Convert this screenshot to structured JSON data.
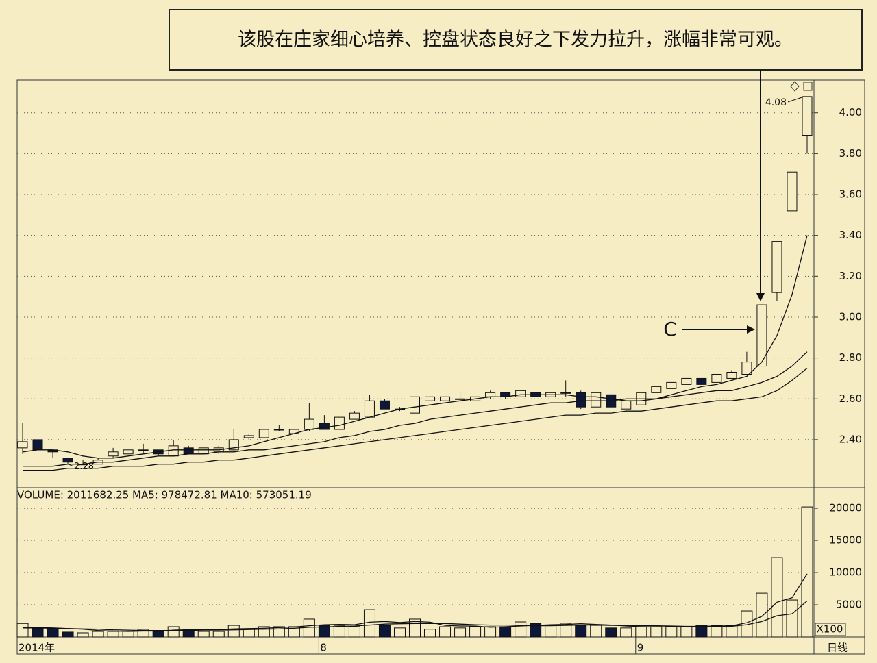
{
  "chart_data": [
    {
      "type": "candlestick",
      "title": "该股在庄家细心培养、控盘状态良好之下发力拉升，涨幅非常可观。",
      "categories": [
        "2014年",
        null,
        null,
        null,
        null,
        null,
        null,
        null,
        null,
        null,
        null,
        null,
        null,
        null,
        null,
        null,
        null,
        null,
        null,
        null,
        "8",
        null,
        null,
        null,
        null,
        null,
        null,
        null,
        null,
        null,
        null,
        null,
        null,
        null,
        null,
        null,
        null,
        null,
        null,
        null,
        null,
        "9",
        null,
        null,
        null,
        null,
        null,
        null,
        null,
        null,
        null,
        null,
        null
      ],
      "open": [
        2.36,
        2.4,
        2.35,
        2.31,
        2.28,
        2.28,
        2.32,
        2.33,
        2.35,
        2.35,
        2.32,
        2.36,
        2.33,
        2.34,
        2.35,
        2.41,
        2.41,
        2.45,
        2.43,
        2.45,
        2.48,
        2.45,
        2.5,
        2.51,
        2.59,
        2.55,
        2.53,
        2.59,
        2.59,
        2.6,
        2.59,
        2.61,
        2.63,
        2.61,
        2.63,
        2.61,
        2.63,
        2.63,
        2.56,
        2.62,
        2.55,
        2.57,
        2.63,
        2.65,
        2.67,
        2.7,
        2.68,
        2.7,
        2.72,
        2.76,
        3.12,
        3.52,
        3.89
      ],
      "high": [
        2.48,
        2.4,
        2.35,
        2.31,
        2.3,
        2.31,
        2.36,
        2.35,
        2.38,
        2.35,
        2.4,
        2.37,
        2.36,
        2.37,
        2.45,
        2.43,
        2.45,
        2.47,
        2.45,
        2.58,
        2.52,
        2.51,
        2.54,
        2.62,
        2.6,
        2.56,
        2.66,
        2.62,
        2.62,
        2.63,
        2.61,
        2.64,
        2.63,
        2.64,
        2.63,
        2.63,
        2.69,
        2.64,
        2.63,
        2.62,
        2.59,
        2.63,
        2.66,
        2.68,
        2.7,
        2.7,
        2.72,
        2.74,
        2.83,
        3.06,
        3.37,
        3.71,
        4.08
      ],
      "low": [
        2.33,
        2.35,
        2.31,
        2.28,
        2.28,
        2.28,
        2.31,
        2.33,
        2.33,
        2.32,
        2.32,
        2.33,
        2.33,
        2.33,
        2.34,
        2.4,
        2.41,
        2.44,
        2.43,
        2.44,
        2.45,
        2.45,
        2.5,
        2.51,
        2.55,
        2.54,
        2.53,
        2.59,
        2.59,
        2.58,
        2.59,
        2.6,
        2.6,
        2.61,
        2.61,
        2.61,
        2.61,
        2.55,
        2.56,
        2.56,
        2.55,
        2.57,
        2.63,
        2.65,
        2.67,
        2.67,
        2.68,
        2.7,
        2.72,
        2.76,
        3.08,
        3.52,
        3.8
      ],
      "close": [
        2.39,
        2.35,
        2.34,
        2.29,
        2.28,
        2.3,
        2.34,
        2.35,
        2.35,
        2.33,
        2.37,
        2.33,
        2.36,
        2.36,
        2.4,
        2.42,
        2.45,
        2.45,
        2.45,
        2.5,
        2.45,
        2.51,
        2.53,
        2.59,
        2.55,
        2.55,
        2.61,
        2.61,
        2.61,
        2.6,
        2.61,
        2.63,
        2.61,
        2.64,
        2.61,
        2.63,
        2.63,
        2.56,
        2.63,
        2.56,
        2.59,
        2.63,
        2.66,
        2.68,
        2.7,
        2.67,
        2.72,
        2.73,
        2.78,
        3.06,
        3.37,
        3.71,
        4.08
      ],
      "up_color": "#f7edc4",
      "down_color": "#0d1838",
      "line_color": "#111111",
      "ma": [
        {
          "values": [
            2.34,
            2.35,
            2.35,
            2.34,
            2.32,
            2.31,
            2.31,
            2.32,
            2.33,
            2.34,
            2.35,
            2.35,
            2.35,
            2.35,
            2.36,
            2.37,
            2.39,
            2.41,
            2.43,
            2.45,
            2.46,
            2.47,
            2.49,
            2.51,
            2.53,
            2.55,
            2.56,
            2.57,
            2.58,
            2.59,
            2.6,
            2.61,
            2.61,
            2.62,
            2.62,
            2.62,
            2.62,
            2.61,
            2.61,
            2.6,
            2.59,
            2.59,
            2.6,
            2.62,
            2.64,
            2.66,
            2.67,
            2.69,
            2.71,
            2.78,
            2.91,
            3.11,
            3.4
          ]
        },
        {
          "values": [
            2.27,
            2.27,
            2.27,
            2.28,
            2.28,
            2.29,
            2.29,
            2.3,
            2.31,
            2.32,
            2.32,
            2.33,
            2.33,
            2.34,
            2.34,
            2.35,
            2.35,
            2.36,
            2.37,
            2.38,
            2.39,
            2.41,
            2.42,
            2.44,
            2.45,
            2.47,
            2.48,
            2.5,
            2.51,
            2.52,
            2.53,
            2.54,
            2.55,
            2.56,
            2.57,
            2.58,
            2.58,
            2.59,
            2.59,
            2.59,
            2.6,
            2.6,
            2.6,
            2.61,
            2.62,
            2.63,
            2.64,
            2.64,
            2.66,
            2.68,
            2.71,
            2.76,
            2.83
          ]
        },
        {
          "values": [
            2.25,
            2.25,
            2.25,
            2.26,
            2.26,
            2.26,
            2.27,
            2.27,
            2.27,
            2.28,
            2.28,
            2.29,
            2.29,
            2.3,
            2.3,
            2.31,
            2.32,
            2.33,
            2.34,
            2.35,
            2.36,
            2.37,
            2.38,
            2.39,
            2.4,
            2.41,
            2.42,
            2.43,
            2.44,
            2.45,
            2.46,
            2.47,
            2.48,
            2.49,
            2.5,
            2.51,
            2.52,
            2.52,
            2.53,
            2.53,
            2.54,
            2.54,
            2.55,
            2.56,
            2.57,
            2.58,
            2.59,
            2.59,
            2.6,
            2.61,
            2.64,
            2.69,
            2.75
          ]
        }
      ],
      "ylim": [
        2.165,
        4.16
      ],
      "yticks": [
        {
          "value": 2.4,
          "label": "2.40"
        },
        {
          "value": 2.6,
          "label": "2.60"
        },
        {
          "value": 2.8,
          "label": "2.80"
        },
        {
          "value": 3.0,
          "label": "3.00"
        },
        {
          "value": 3.2,
          "label": "3.20"
        },
        {
          "value": 3.4,
          "label": "3.40"
        },
        {
          "value": 3.6,
          "label": "3.60"
        },
        {
          "value": 3.8,
          "label": "3.80"
        },
        {
          "value": 4.0,
          "label": "4.00"
        }
      ],
      "grid": true,
      "annotations": {
        "high_label": "4.08",
        "low_label": "2.28",
        "point_label": "C"
      },
      "period_label": "日线"
    },
    {
      "type": "bar",
      "title": "VOLUME: 2011682.25  MA5: 978472.81  MA10: 573051.19",
      "values": [
        2100,
        1300,
        1300,
        750,
        640,
        850,
        850,
        850,
        1170,
        850,
        1600,
        1200,
        850,
        850,
        1800,
        1200,
        1600,
        1600,
        1600,
        2770,
        1800,
        1800,
        1600,
        4250,
        1800,
        1400,
        2770,
        1200,
        1600,
        1400,
        1600,
        1600,
        1600,
        2340,
        2130,
        1800,
        2130,
        1800,
        1800,
        1400,
        1400,
        1600,
        1600,
        1600,
        1600,
        1800,
        1800,
        1800,
        4040,
        6800,
        12340,
        5740,
        20210
      ],
      "ma": [
        {
          "values": [
            1500,
            1450,
            1400,
            1300,
            1200,
            1000,
            900,
            850,
            900,
            900,
            1050,
            1100,
            1150,
            1150,
            1250,
            1300,
            1350,
            1450,
            1550,
            1750,
            1900,
            1950,
            1900,
            2300,
            2400,
            2250,
            2400,
            2300,
            1800,
            1700,
            1700,
            1500,
            1600,
            1700,
            1800,
            1900,
            1950,
            2050,
            1950,
            1850,
            1700,
            1600,
            1550,
            1550,
            1600,
            1650,
            1700,
            1750,
            2200,
            3200,
            5400,
            6100,
            9800
          ]
        },
        {
          "values": [
            1400,
            1400,
            1350,
            1300,
            1250,
            1200,
            1100,
            1050,
            1000,
            1000,
            1000,
            1000,
            1050,
            1050,
            1100,
            1150,
            1200,
            1250,
            1350,
            1500,
            1550,
            1650,
            1700,
            1850,
            2000,
            2050,
            2100,
            2100,
            2100,
            2000,
            1900,
            1850,
            1850,
            1800,
            1750,
            1750,
            1800,
            1850,
            1850,
            1800,
            1800,
            1750,
            1750,
            1700,
            1650,
            1650,
            1650,
            1650,
            1900,
            2400,
            3300,
            3600,
            5600
          ]
        }
      ],
      "ylim": [
        0,
        23200
      ],
      "yticks": [
        5000,
        10000,
        15000,
        20000
      ],
      "unit_label": "X100",
      "grid": true
    }
  ]
}
